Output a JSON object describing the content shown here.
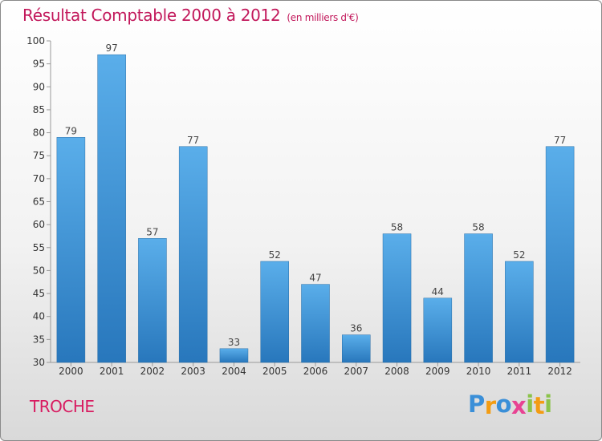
{
  "chart_data": {
    "type": "bar",
    "title": "Résultat Comptable 2000 à 2012",
    "subtitle": "(en milliers d'€)",
    "categories": [
      "2000",
      "2001",
      "2002",
      "2003",
      "2004",
      "2005",
      "2006",
      "2007",
      "2008",
      "2009",
      "2010",
      "2011",
      "2012"
    ],
    "values": [
      79,
      97,
      57,
      77,
      33,
      52,
      47,
      36,
      58,
      44,
      58,
      52,
      77
    ],
    "ylim": [
      30,
      100
    ],
    "yticks": [
      30,
      35,
      40,
      45,
      50,
      55,
      60,
      65,
      70,
      75,
      80,
      85,
      90,
      95,
      100
    ],
    "xlabel": "",
    "ylabel": "",
    "grid": false,
    "bar_color": "#3d8fd4"
  },
  "commune_name": "TROCHE",
  "logo": {
    "letters": [
      "P",
      "r",
      "o",
      "x",
      "i",
      "t",
      "i"
    ],
    "colors": [
      "#3a8fd8",
      "#f39c12",
      "#3a8fd8",
      "#e84393",
      "#8bc34a",
      "#f39c12",
      "#8bc34a"
    ]
  }
}
